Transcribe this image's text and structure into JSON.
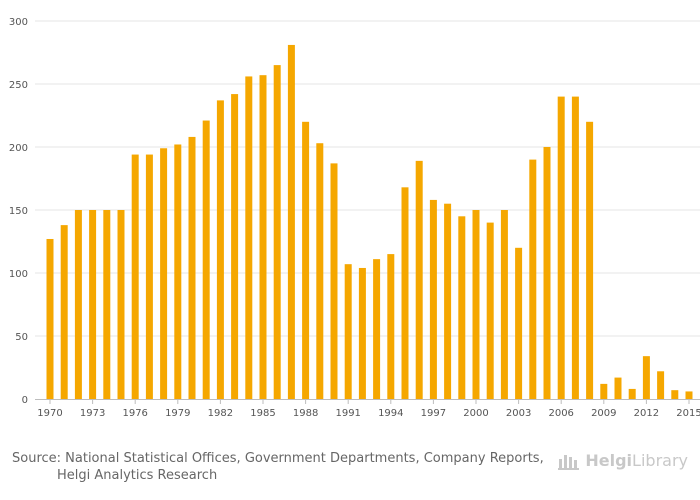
{
  "chart_data": {
    "type": "bar",
    "title": "",
    "xlabel": "",
    "ylabel": "",
    "ylim": [
      0,
      300
    ],
    "yticks": [
      0,
      50,
      100,
      150,
      200,
      250,
      300
    ],
    "tick_years": [
      1970,
      1973,
      1976,
      1979,
      1982,
      1985,
      1988,
      1991,
      1994,
      1997,
      2000,
      2003,
      2006,
      2009,
      2012,
      2015
    ],
    "categories": [
      1970,
      1971,
      1972,
      1973,
      1974,
      1975,
      1976,
      1977,
      1978,
      1979,
      1980,
      1981,
      1982,
      1983,
      1984,
      1985,
      1986,
      1987,
      1988,
      1989,
      1990,
      1991,
      1992,
      1993,
      1994,
      1995,
      1996,
      1997,
      1998,
      1999,
      2000,
      2001,
      2002,
      2003,
      2004,
      2005,
      2006,
      2007,
      2008,
      2009,
      2010,
      2011,
      2012,
      2013,
      2014,
      2015
    ],
    "values": [
      127,
      138,
      150,
      150,
      150,
      150,
      194,
      194,
      199,
      202,
      208,
      221,
      237,
      242,
      256,
      257,
      265,
      281,
      220,
      203,
      187,
      107,
      104,
      111,
      115,
      168,
      189,
      158,
      155,
      145,
      150,
      140,
      150,
      120,
      190,
      200,
      240,
      240,
      220,
      12,
      17,
      8,
      34,
      22,
      7,
      6
    ],
    "bar_color": "#f5a700"
  },
  "footer": {
    "source_line_1": "Source: National Statistical Offices, Government Departments, Company Reports,",
    "source_line_2": "Helgi Analytics Research",
    "brand_bold": "Helgi",
    "brand_regular": "Library"
  }
}
